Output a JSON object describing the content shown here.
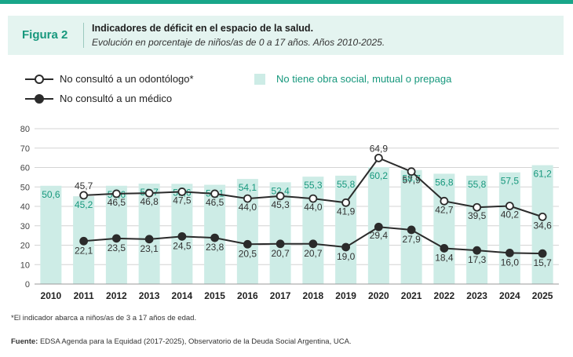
{
  "header": {
    "figure_label": "Figura 2",
    "title": "Indicadores de déficit en el espacio de la salud.",
    "subtitle": "Evolución en porcentaje de niños/as de 0 a 17 años. Años 2010-2025."
  },
  "legend": {
    "dentist": "No consultó a un odontólogo*",
    "doctor": "No consultó a un médico",
    "insurance": "No tiene obra social, mutual o prepaga"
  },
  "footnote": "*El indicador abarca a niños/as de 3 a 17 años de edad.",
  "source": {
    "label": "Fuente:",
    "text": " EDSA Agenda para la Equidad (2017-2025), Observatorio de la Deuda Social Argentina, UCA."
  },
  "colors": {
    "brand": "#17987d",
    "bar": "#cdece6",
    "line": "#2b2b2b",
    "grid": "#d4d4d4"
  },
  "chart_data": {
    "type": "bar",
    "categories": [
      "2010",
      "2011",
      "2012",
      "2013",
      "2014",
      "2015",
      "2016",
      "2017",
      "2018",
      "2019",
      "2020",
      "2021",
      "2022",
      "2023",
      "2024",
      "2025"
    ],
    "ylim": [
      0,
      80
    ],
    "yticks": [
      0,
      10,
      20,
      30,
      40,
      50,
      60,
      70,
      80
    ],
    "grid": true,
    "bars": {
      "name": "No tiene obra social, mutual o prepaga",
      "values": [
        50.6,
        45.2,
        50.6,
        51.7,
        51.6,
        51.1,
        54.1,
        52.4,
        55.3,
        55.8,
        60.2,
        58.7,
        56.8,
        55.8,
        57.5,
        61.2
      ],
      "labels": [
        "50,6",
        "45,2",
        "50,6",
        "51,7",
        "51,6",
        "51,1",
        "54,1",
        "52,4",
        "55,3",
        "55,8",
        "60,2",
        "58,7",
        "56,8",
        "55,8",
        "57,5",
        "61,2"
      ]
    },
    "lines": [
      {
        "name": "No consultó a un odontólogo*",
        "marker": "open",
        "values": [
          null,
          45.7,
          46.5,
          46.8,
          47.5,
          46.5,
          44.0,
          45.3,
          44.0,
          41.9,
          64.9,
          57.9,
          42.7,
          39.5,
          40.2,
          34.6
        ],
        "labels": [
          null,
          "45,7",
          "46,5",
          "46,8",
          "47,5",
          "46,5",
          "44,0",
          "45,3",
          "44,0",
          "41,9",
          "64,9",
          "57,9",
          "42,7",
          "39,5",
          "40,2",
          "34,6"
        ]
      },
      {
        "name": "No consultó a un médico",
        "marker": "filled",
        "values": [
          null,
          22.1,
          23.5,
          23.1,
          24.5,
          23.8,
          20.5,
          20.7,
          20.7,
          19.0,
          29.4,
          27.9,
          18.4,
          17.3,
          16.0,
          15.7
        ],
        "labels": [
          null,
          "22,1",
          "23,5",
          "23,1",
          "24,5",
          "23,8",
          "20,5",
          "20,7",
          "20,7",
          "19,0",
          "29,4",
          "27,9",
          "18,4",
          "17,3",
          "16,0",
          "15,7"
        ]
      }
    ]
  }
}
